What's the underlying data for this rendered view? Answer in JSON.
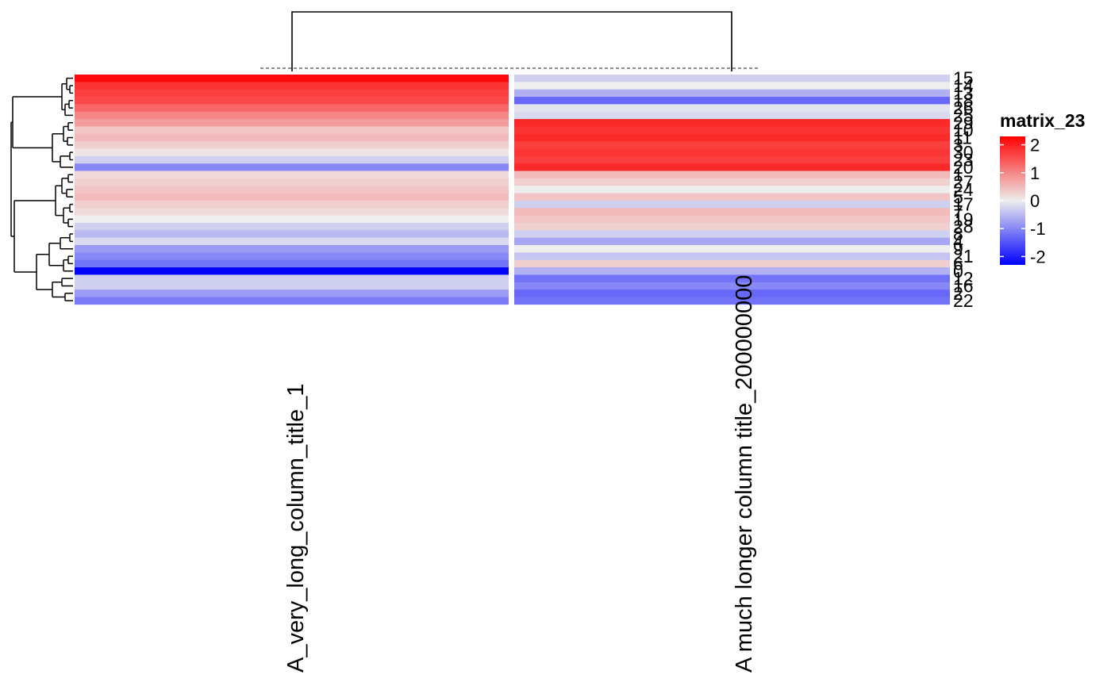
{
  "chart_data": {
    "type": "heatmap",
    "title": "",
    "columns": [
      "A_very_long_column_title_1",
      "A much longer column title_200000000"
    ],
    "rows": [
      "15",
      "14",
      "13",
      "18",
      "26",
      "25",
      "29",
      "10",
      "11",
      "3",
      "30",
      "23",
      "20",
      "1",
      "27",
      "24",
      "5",
      "17",
      "7",
      "19",
      "28",
      "8",
      "4",
      "9",
      "21",
      "6",
      "0",
      "12",
      "16",
      "2",
      "22"
    ],
    "values": [
      [
        2.2,
        -0.3
      ],
      [
        1.8,
        0.0
      ],
      [
        1.7,
        -0.6
      ],
      [
        1.6,
        -1.3
      ],
      [
        1.3,
        -0.1
      ],
      [
        1.0,
        -0.2
      ],
      [
        0.8,
        1.9
      ],
      [
        0.4,
        1.8
      ],
      [
        0.5,
        1.9
      ],
      [
        0.3,
        1.7
      ],
      [
        0.1,
        1.8
      ],
      [
        -0.3,
        1.7
      ],
      [
        -1.0,
        1.9
      ],
      [
        0.2,
        0.5
      ],
      [
        0.3,
        0.3
      ],
      [
        0.4,
        0.0
      ],
      [
        0.5,
        0.4
      ],
      [
        0.3,
        -0.3
      ],
      [
        0.2,
        0.5
      ],
      [
        0.0,
        0.4
      ],
      [
        -0.3,
        0.3
      ],
      [
        -0.5,
        -0.3
      ],
      [
        -0.2,
        -0.7
      ],
      [
        -0.8,
        0.0
      ],
      [
        -1.0,
        -0.4
      ],
      [
        -1.2,
        0.3
      ],
      [
        -2.3,
        -0.6
      ],
      [
        -0.3,
        -1.2
      ],
      [
        -0.3,
        -1.0
      ],
      [
        -0.8,
        -1.3
      ],
      [
        -1.1,
        -1.2
      ]
    ],
    "legend": {
      "title": "matrix_23",
      "ticks": [
        2,
        1,
        0,
        -1,
        -2
      ],
      "range": [
        -2.3,
        2.3
      ],
      "colors": {
        "low": "#0000ff",
        "mid": "#eeeeee",
        "high": "#ff0000"
      }
    },
    "row_dendrogram": true,
    "column_dendrogram": true,
    "column_gap": true
  }
}
